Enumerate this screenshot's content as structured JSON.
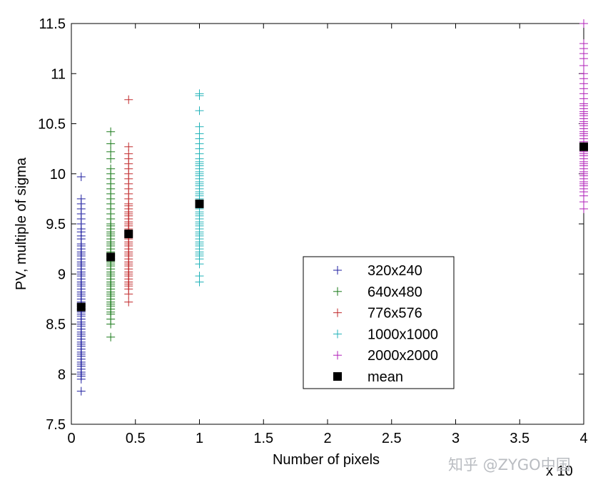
{
  "chart_data": {
    "type": "scatter",
    "xlabel": "Number of pixels",
    "ylabel": "PV, multiple of sigma",
    "x_exponent_label": "x 10",
    "xlim": [
      0,
      4
    ],
    "ylim": [
      7.5,
      11.5
    ],
    "x_ticks": [
      "0",
      "0.5",
      "1",
      "1.5",
      "2",
      "2.5",
      "3",
      "3.5",
      "4"
    ],
    "y_ticks": [
      "7.5",
      "8",
      "8.5",
      "9",
      "9.5",
      "10",
      "10.5",
      "11",
      "11.5"
    ],
    "legend_position": "lower-right",
    "series": [
      {
        "name": "320x240",
        "marker": "plus",
        "color": "#1f1fa0",
        "x": 0.0768,
        "y": [
          7.83,
          7.95,
          7.98,
          8.0,
          8.02,
          8.05,
          8.08,
          8.1,
          8.12,
          8.15,
          8.18,
          8.2,
          8.22,
          8.25,
          8.28,
          8.3,
          8.32,
          8.35,
          8.38,
          8.4,
          8.42,
          8.45,
          8.48,
          8.5,
          8.52,
          8.55,
          8.58,
          8.6,
          8.62,
          8.65,
          8.68,
          8.7,
          8.72,
          8.75,
          8.78,
          8.8,
          8.82,
          8.85,
          8.88,
          8.9,
          8.92,
          8.95,
          8.98,
          9.0,
          9.02,
          9.05,
          9.08,
          9.1,
          9.12,
          9.15,
          9.18,
          9.2,
          9.22,
          9.25,
          9.28,
          9.3,
          9.35,
          9.38,
          9.42,
          9.45,
          9.5,
          9.55,
          9.6,
          9.65,
          9.7,
          9.75,
          9.97
        ]
      },
      {
        "name": "640x480",
        "marker": "plus",
        "color": "#1a7a1a",
        "x": 0.3072,
        "y": [
          8.37,
          8.5,
          8.55,
          8.6,
          8.62,
          8.65,
          8.68,
          8.7,
          8.72,
          8.75,
          8.78,
          8.8,
          8.82,
          8.85,
          8.88,
          8.9,
          8.92,
          8.95,
          8.98,
          9.0,
          9.02,
          9.05,
          9.08,
          9.1,
          9.12,
          9.15,
          9.18,
          9.2,
          9.22,
          9.25,
          9.28,
          9.3,
          9.32,
          9.35,
          9.38,
          9.4,
          9.42,
          9.45,
          9.48,
          9.5,
          9.55,
          9.6,
          9.65,
          9.7,
          9.75,
          9.8,
          9.85,
          9.9,
          9.95,
          10.0,
          10.05,
          10.15,
          10.22,
          10.3,
          10.42
        ]
      },
      {
        "name": "776x576",
        "marker": "plus",
        "color": "#c0282a",
        "x": 0.44698,
        "y": [
          8.72,
          8.8,
          8.85,
          8.88,
          8.9,
          8.92,
          8.95,
          8.98,
          9.0,
          9.02,
          9.05,
          9.08,
          9.1,
          9.12,
          9.15,
          9.18,
          9.2,
          9.22,
          9.25,
          9.28,
          9.3,
          9.32,
          9.35,
          9.38,
          9.4,
          9.42,
          9.45,
          9.48,
          9.5,
          9.52,
          9.55,
          9.58,
          9.6,
          9.62,
          9.65,
          9.68,
          9.7,
          9.75,
          9.8,
          9.85,
          9.9,
          9.95,
          10.0,
          10.05,
          10.1,
          10.15,
          10.2,
          10.27,
          10.74
        ]
      },
      {
        "name": "1000x1000",
        "marker": "plus",
        "color": "#20b2b8",
        "x": 1.0,
        "y": [
          8.92,
          8.98,
          9.1,
          9.15,
          9.18,
          9.2,
          9.22,
          9.25,
          9.28,
          9.3,
          9.32,
          9.35,
          9.38,
          9.4,
          9.42,
          9.45,
          9.48,
          9.5,
          9.52,
          9.55,
          9.58,
          9.6,
          9.62,
          9.65,
          9.68,
          9.7,
          9.72,
          9.75,
          9.78,
          9.8,
          9.82,
          9.85,
          9.88,
          9.9,
          9.92,
          9.95,
          9.98,
          10.0,
          10.02,
          10.05,
          10.08,
          10.1,
          10.12,
          10.15,
          10.2,
          10.25,
          10.3,
          10.35,
          10.4,
          10.47,
          10.63,
          10.78,
          10.8
        ]
      },
      {
        "name": "2000x2000",
        "marker": "plus",
        "color": "#b020b8",
        "x": 4.0,
        "y": [
          9.65,
          9.72,
          9.78,
          9.82,
          9.85,
          9.88,
          9.9,
          9.92,
          9.95,
          9.98,
          10.0,
          10.02,
          10.05,
          10.08,
          10.1,
          10.12,
          10.15,
          10.18,
          10.2,
          10.22,
          10.25,
          10.28,
          10.3,
          10.32,
          10.35,
          10.38,
          10.4,
          10.42,
          10.45,
          10.48,
          10.5,
          10.52,
          10.55,
          10.58,
          10.6,
          10.62,
          10.65,
          10.68,
          10.7,
          10.75,
          10.8,
          10.85,
          10.9,
          10.95,
          11.0,
          11.08,
          11.15,
          11.2,
          11.25,
          11.3,
          11.5
        ]
      },
      {
        "name": "mean",
        "marker": "square",
        "color": "#000000",
        "x": [
          0.0768,
          0.3072,
          0.44698,
          1.0,
          4.0
        ],
        "y": [
          8.67,
          9.17,
          9.4,
          9.7,
          10.27
        ]
      }
    ]
  },
  "watermark": "知乎 @ZYGO中国"
}
